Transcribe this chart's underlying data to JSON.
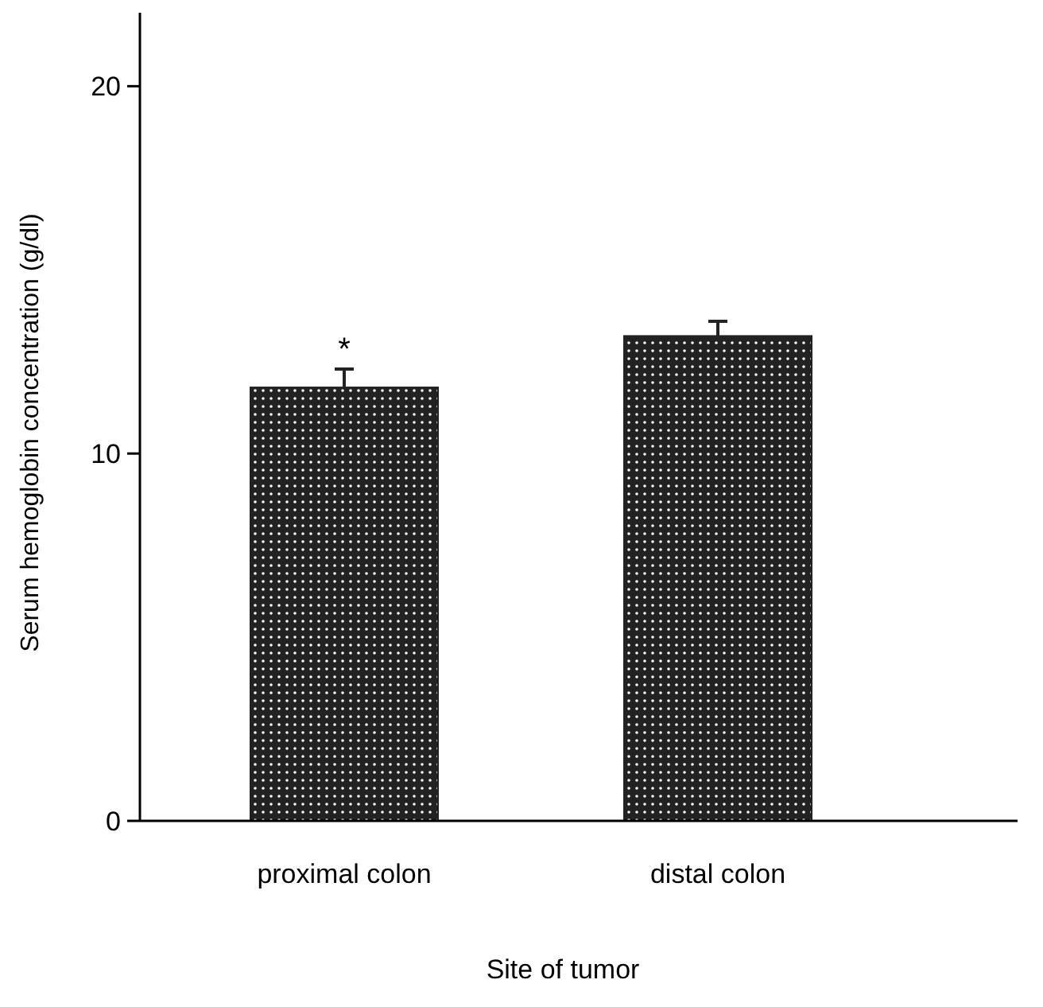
{
  "chart_data": {
    "type": "bar",
    "xlabel": "Site of tumor",
    "ylabel": "Serum hemoglobin concentration (g/dl)",
    "categories": [
      "proximal colon",
      "distal colon"
    ],
    "values": [
      11.8,
      13.2
    ],
    "errors": [
      0.5,
      0.4
    ],
    "color": "#222222",
    "ylim": [
      0,
      22
    ],
    "yticks": [
      0,
      10,
      20
    ],
    "annotations": [
      {
        "text": "*",
        "x": "proximal colon",
        "y": 12.3
      }
    ]
  }
}
